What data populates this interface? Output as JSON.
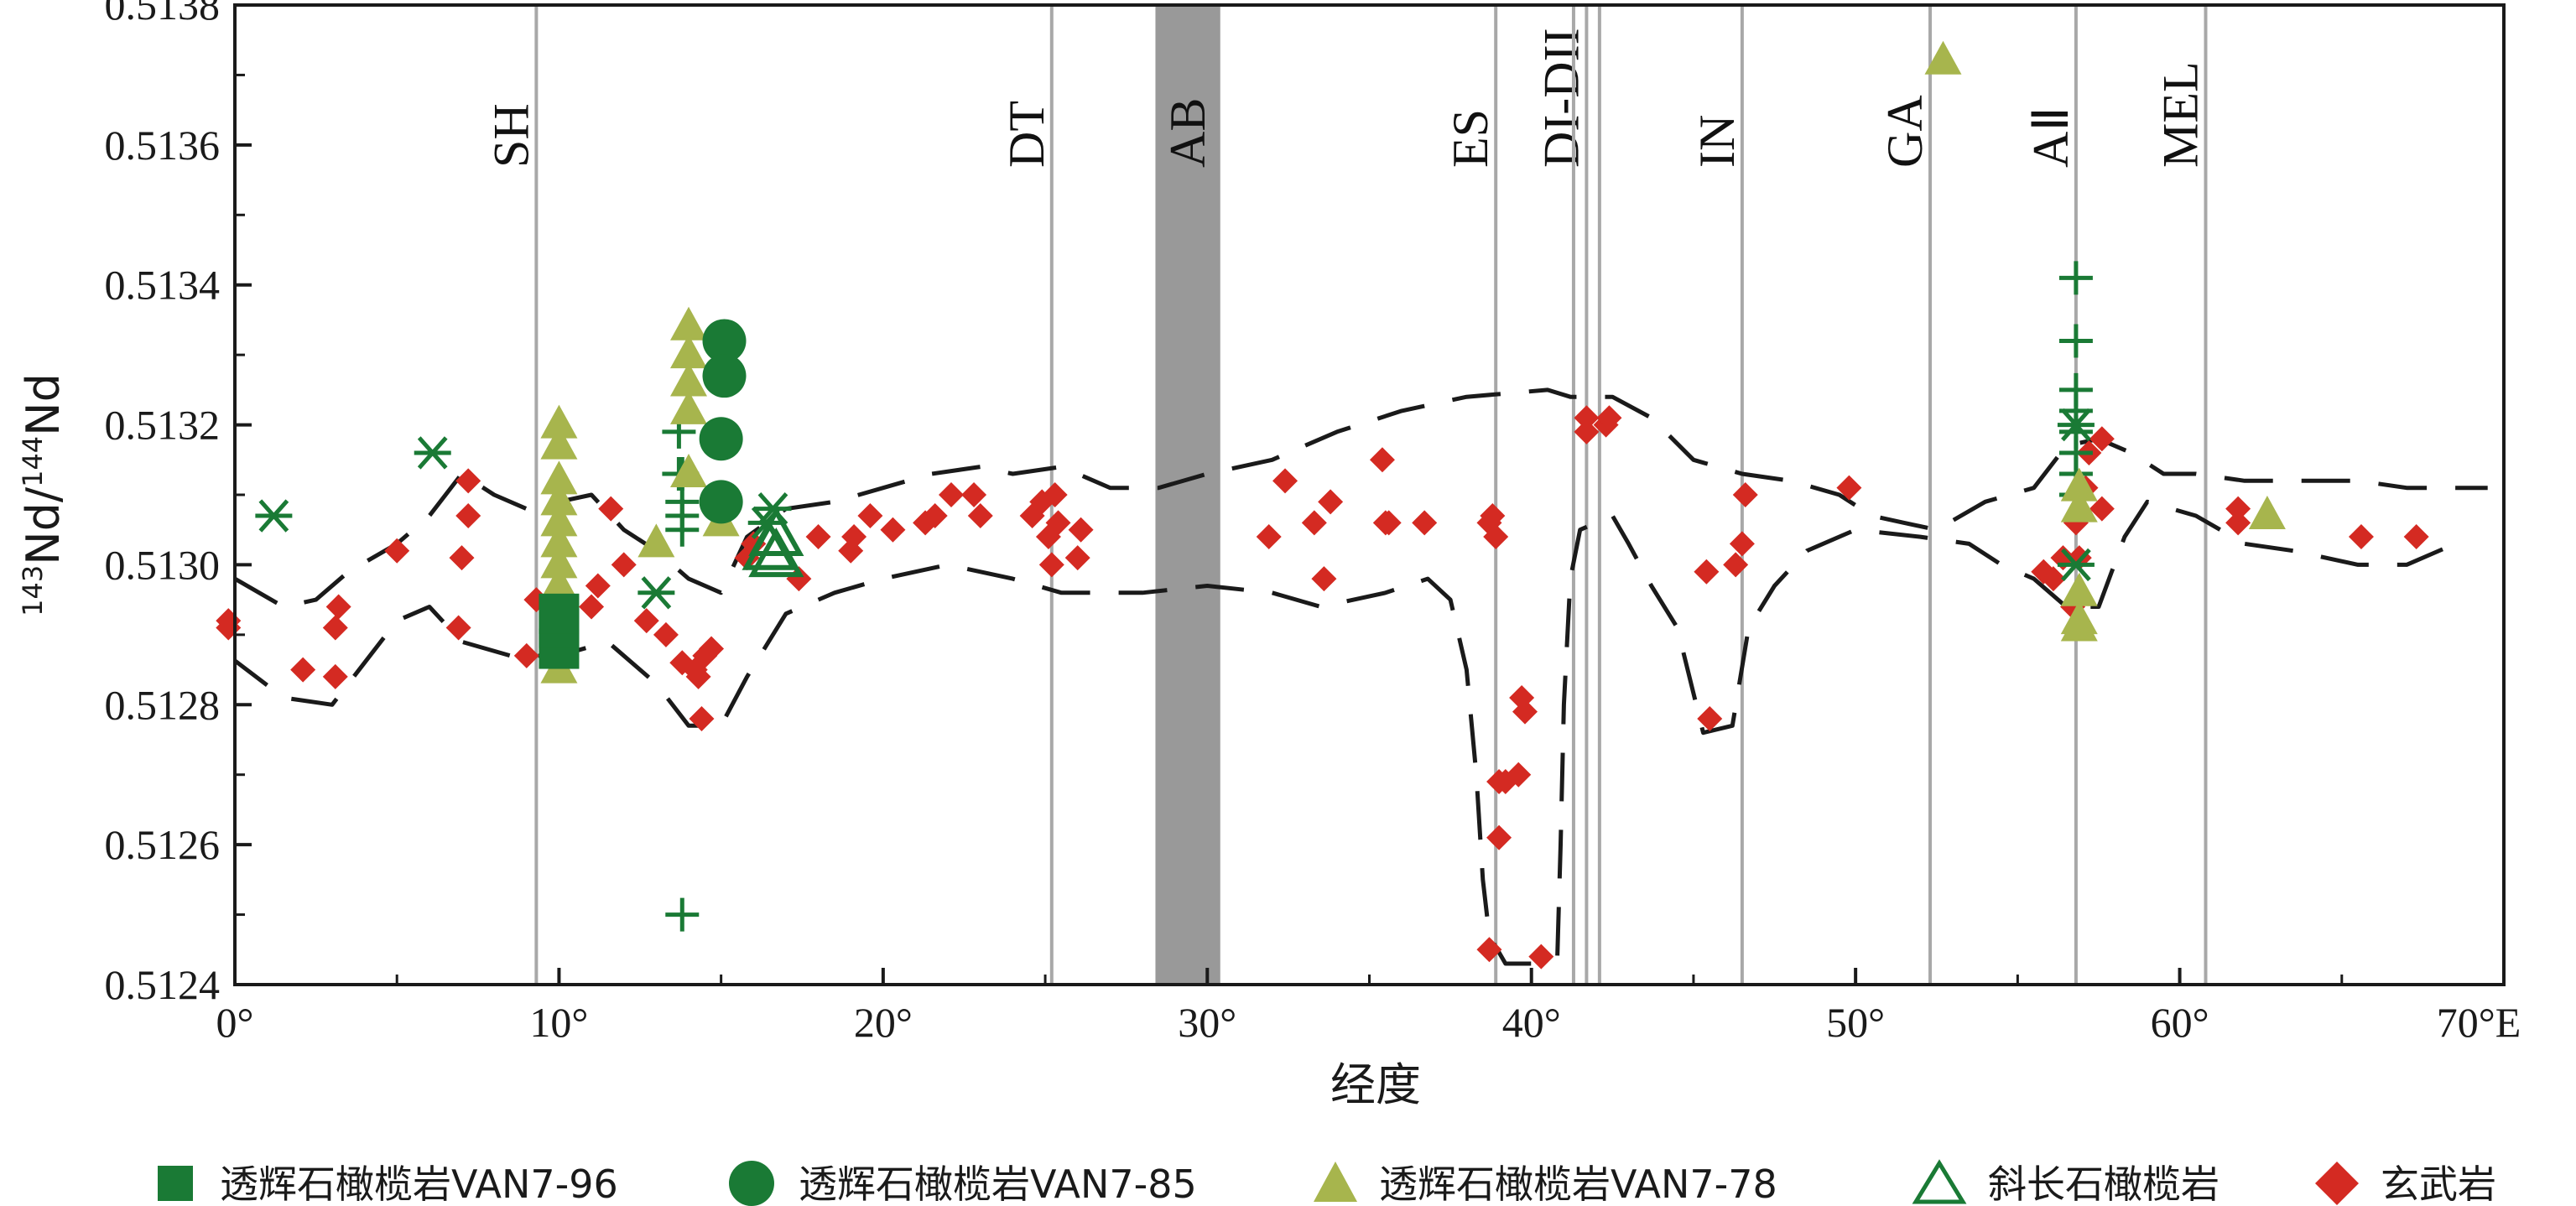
{
  "chart_data": {
    "type": "scatter",
    "title": "",
    "xlabel": "经度",
    "ylabel_parts": {
      "sup1": "143",
      "mid": "Nd/",
      "sup2": "144",
      "end": "Nd"
    },
    "xlim": [
      0,
      70
    ],
    "ylim": [
      0.5124,
      0.5138
    ],
    "x_ticks": [
      {
        "v": 0,
        "label": "0°"
      },
      {
        "v": 10,
        "label": "10°"
      },
      {
        "v": 20,
        "label": "20°"
      },
      {
        "v": 30,
        "label": "30°"
      },
      {
        "v": 40,
        "label": "40°"
      },
      {
        "v": 50,
        "label": "50°"
      },
      {
        "v": 60,
        "label": "60°"
      },
      {
        "v": 70,
        "label": "70°E"
      }
    ],
    "y_ticks": [
      {
        "v": 0.5124,
        "label": "0.5124"
      },
      {
        "v": 0.5126,
        "label": "0.5126"
      },
      {
        "v": 0.5128,
        "label": "0.5128"
      },
      {
        "v": 0.513,
        "label": "0.5130"
      },
      {
        "v": 0.5132,
        "label": "0.5132"
      },
      {
        "v": 0.5134,
        "label": "0.5134"
      },
      {
        "v": 0.5136,
        "label": "0.5136"
      },
      {
        "v": 0.5138,
        "label": "0.5138"
      }
    ],
    "ridge_lines": [
      {
        "x": 9.3,
        "label": "SH"
      },
      {
        "x": 25.2,
        "label": "DT"
      },
      {
        "x": 38.9,
        "label": "ES"
      },
      {
        "x": 41.7,
        "label": "DI-DII"
      },
      {
        "x": 46.5,
        "label": "IN"
      },
      {
        "x": 52.3,
        "label": "GA"
      },
      {
        "x": 56.8,
        "label": "AⅡ"
      },
      {
        "x": 60.8,
        "label": "MEL"
      }
    ],
    "extra_line_x": [
      41.3,
      42.1
    ],
    "band": {
      "x0": 28.4,
      "x1": 30.4,
      "label": "AB",
      "label_x": 29.4
    },
    "colors": {
      "dark_green": "#1a7a35",
      "olive": "#a7b54d",
      "red": "#d42a22",
      "ridge_line": "#a8a8a8",
      "band": "#999999",
      "envelope": "#1a1a1a"
    },
    "series": [
      {
        "name": "透辉石橄榄岩VAN7-96",
        "marker": "square",
        "color": "#1a7a35",
        "in_legend": true,
        "points": [
          [
            10.0,
            0.51288
          ],
          [
            10.0,
            0.51291
          ],
          [
            10.0,
            0.51293
          ]
        ]
      },
      {
        "name": "透辉石橄榄岩VAN7-85",
        "marker": "circle",
        "color": "#1a7a35",
        "in_legend": true,
        "points": [
          [
            15.1,
            0.51332
          ],
          [
            15.1,
            0.51327
          ],
          [
            15.0,
            0.51318
          ],
          [
            15.0,
            0.51309
          ]
        ]
      },
      {
        "name": "透辉石橄榄岩VAN7-78",
        "marker": "triangle",
        "color": "#a7b54d",
        "in_legend": true,
        "points": [
          [
            10.0,
            0.5132
          ],
          [
            10.0,
            0.51317
          ],
          [
            10.0,
            0.51312
          ],
          [
            10.0,
            0.51309
          ],
          [
            10.0,
            0.51306
          ],
          [
            10.0,
            0.51303
          ],
          [
            10.0,
            0.513
          ],
          [
            10.0,
            0.51297
          ],
          [
            10.0,
            0.51294
          ],
          [
            10.0,
            0.51291
          ],
          [
            10.0,
            0.51288
          ],
          [
            10.0,
            0.51285
          ],
          [
            13.0,
            0.51303
          ],
          [
            14.0,
            0.51334
          ],
          [
            14.0,
            0.5133
          ],
          [
            14.0,
            0.51326
          ],
          [
            14.0,
            0.51322
          ],
          [
            14.0,
            0.51313
          ],
          [
            15.0,
            0.51306
          ],
          [
            52.7,
            0.51372
          ],
          [
            56.9,
            0.51311
          ],
          [
            56.9,
            0.51308
          ],
          [
            56.9,
            0.51296
          ],
          [
            56.9,
            0.51292
          ],
          [
            56.9,
            0.51291
          ],
          [
            62.7,
            0.51307
          ]
        ]
      },
      {
        "name": "斜长石橄榄岩",
        "marker": "open-triangle",
        "color": "#1a7a35",
        "in_legend": true,
        "points": [
          [
            16.5,
            0.51302
          ],
          [
            16.7,
            0.51304
          ],
          [
            16.7,
            0.51301
          ]
        ]
      },
      {
        "name": "玄武岩",
        "marker": "diamond",
        "color": "#d42a22",
        "in_legend": true,
        "points": [
          [
            -0.2,
            0.51292
          ],
          [
            -0.2,
            0.51291
          ],
          [
            2.1,
            0.51285
          ],
          [
            3.1,
            0.51284
          ],
          [
            3.1,
            0.51291
          ],
          [
            3.2,
            0.51294
          ],
          [
            5.0,
            0.51302
          ],
          [
            6.9,
            0.51291
          ],
          [
            7.0,
            0.51301
          ],
          [
            7.2,
            0.51307
          ],
          [
            7.2,
            0.51312
          ],
          [
            9.0,
            0.51287
          ],
          [
            9.3,
            0.51295
          ],
          [
            11.0,
            0.51294
          ],
          [
            11.2,
            0.51297
          ],
          [
            11.6,
            0.51308
          ],
          [
            12.0,
            0.513
          ],
          [
            12.7,
            0.51292
          ],
          [
            13.3,
            0.5129
          ],
          [
            13.8,
            0.51286
          ],
          [
            14.2,
            0.51285
          ],
          [
            14.3,
            0.51284
          ],
          [
            14.4,
            0.51278
          ],
          [
            14.5,
            0.51287
          ],
          [
            14.7,
            0.51288
          ],
          [
            15.8,
            0.51301
          ],
          [
            16.0,
            0.51303
          ],
          [
            17.4,
            0.51298
          ],
          [
            18.0,
            0.51304
          ],
          [
            19.0,
            0.51302
          ],
          [
            19.1,
            0.51304
          ],
          [
            19.6,
            0.51307
          ],
          [
            20.3,
            0.51305
          ],
          [
            21.3,
            0.51306
          ],
          [
            21.6,
            0.51307
          ],
          [
            22.1,
            0.5131
          ],
          [
            22.8,
            0.5131
          ],
          [
            23.0,
            0.51307
          ],
          [
            24.6,
            0.51307
          ],
          [
            24.9,
            0.51309
          ],
          [
            25.1,
            0.51304
          ],
          [
            25.2,
            0.513
          ],
          [
            25.3,
            0.5131
          ],
          [
            25.4,
            0.51306
          ],
          [
            26.0,
            0.51301
          ],
          [
            26.1,
            0.51305
          ],
          [
            31.9,
            0.51304
          ],
          [
            32.4,
            0.51312
          ],
          [
            33.3,
            0.51306
          ],
          [
            33.6,
            0.51298
          ],
          [
            33.8,
            0.51309
          ],
          [
            35.4,
            0.51315
          ],
          [
            35.5,
            0.51306
          ],
          [
            35.6,
            0.51306
          ],
          [
            36.7,
            0.51306
          ],
          [
            38.7,
            0.51306
          ],
          [
            38.8,
            0.51307
          ],
          [
            38.9,
            0.51304
          ],
          [
            38.7,
            0.51245
          ],
          [
            39.0,
            0.51269
          ],
          [
            39.0,
            0.51261
          ],
          [
            39.2,
            0.51269
          ],
          [
            39.6,
            0.5127
          ],
          [
            39.7,
            0.51281
          ],
          [
            39.8,
            0.51279
          ],
          [
            40.3,
            0.51244
          ],
          [
            41.7,
            0.51319
          ],
          [
            41.7,
            0.51321
          ],
          [
            42.3,
            0.5132
          ],
          [
            42.4,
            0.51321
          ],
          [
            45.4,
            0.51299
          ],
          [
            45.5,
            0.51278
          ],
          [
            46.3,
            0.513
          ],
          [
            46.5,
            0.51303
          ],
          [
            46.6,
            0.5131
          ],
          [
            49.8,
            0.51311
          ],
          [
            55.8,
            0.51299
          ],
          [
            56.1,
            0.51298
          ],
          [
            56.4,
            0.51301
          ],
          [
            56.7,
            0.51294
          ],
          [
            56.8,
            0.51306
          ],
          [
            56.9,
            0.51301
          ],
          [
            57.1,
            0.51311
          ],
          [
            57.2,
            0.51316
          ],
          [
            57.6,
            0.51318
          ],
          [
            57.6,
            0.51308
          ],
          [
            61.8,
            0.51306
          ],
          [
            61.8,
            0.51308
          ],
          [
            65.6,
            0.51304
          ],
          [
            67.3,
            0.51304
          ]
        ]
      },
      {
        "name": "",
        "marker": "plus",
        "color": "#1a7a35",
        "in_legend": false,
        "points": [
          [
            13.8,
            0.51313
          ],
          [
            13.8,
            0.51309
          ],
          [
            13.8,
            0.51307
          ],
          [
            13.8,
            0.51305
          ],
          [
            13.7,
            0.51319
          ],
          [
            13.7,
            0.51313
          ],
          [
            13.8,
            0.5125
          ],
          [
            56.8,
            0.51341
          ],
          [
            56.8,
            0.51332
          ],
          [
            56.8,
            0.51325
          ],
          [
            56.8,
            0.51322
          ],
          [
            56.8,
            0.51319
          ],
          [
            56.8,
            0.51316
          ],
          [
            56.8,
            0.51313
          ],
          [
            56.8,
            0.5131
          ]
        ]
      },
      {
        "name": "",
        "marker": "asterisk",
        "color": "#1a7a35",
        "in_legend": false,
        "points": [
          [
            1.2,
            0.51307
          ],
          [
            6.1,
            0.51316
          ],
          [
            13.0,
            0.51296
          ],
          [
            16.4,
            0.51306
          ],
          [
            16.6,
            0.51308
          ],
          [
            56.8,
            0.5132
          ],
          [
            56.8,
            0.513
          ]
        ]
      }
    ],
    "envelopes": [
      [
        [
          -0.2,
          0.51287
        ],
        [
          1.5,
          0.51281
        ],
        [
          3.0,
          0.5128
        ],
        [
          4.0,
          0.51286
        ],
        [
          5.0,
          0.51292
        ],
        [
          6.0,
          0.51294
        ],
        [
          7.0,
          0.51289
        ],
        [
          8.5,
          0.51287
        ],
        [
          10.0,
          0.51287
        ],
        [
          11.5,
          0.51289
        ],
        [
          13.0,
          0.51283
        ],
        [
          14.0,
          0.51277
        ],
        [
          15.0,
          0.51277
        ],
        [
          15.8,
          0.51284
        ],
        [
          17.0,
          0.51293
        ],
        [
          18.5,
          0.51296
        ],
        [
          20.0,
          0.51298
        ],
        [
          22.0,
          0.513
        ],
        [
          24.0,
          0.51298
        ],
        [
          25.5,
          0.51296
        ],
        [
          28.0,
          0.51296
        ],
        [
          30.0,
          0.51297
        ],
        [
          32.0,
          0.51296
        ],
        [
          33.5,
          0.51294
        ],
        [
          35.5,
          0.51296
        ],
        [
          36.8,
          0.51298
        ],
        [
          37.5,
          0.51295
        ],
        [
          38.0,
          0.51285
        ],
        [
          38.3,
          0.5127
        ],
        [
          38.5,
          0.51255
        ],
        [
          38.7,
          0.51247
        ],
        [
          39.2,
          0.51243
        ],
        [
          40.2,
          0.51243
        ],
        [
          40.8,
          0.51244
        ],
        [
          40.9,
          0.5126
        ],
        [
          41.0,
          0.5128
        ],
        [
          41.2,
          0.51298
        ],
        [
          41.5,
          0.51305
        ],
        [
          42.5,
          0.51307
        ],
        [
          43.0,
          0.51303
        ],
        [
          43.7,
          0.51297
        ],
        [
          44.5,
          0.51291
        ],
        [
          45.3,
          0.51276
        ],
        [
          46.2,
          0.51277
        ],
        [
          46.7,
          0.51291
        ],
        [
          47.5,
          0.51297
        ],
        [
          48.5,
          0.51302
        ],
        [
          50.0,
          0.51305
        ],
        [
          52.0,
          0.51304
        ],
        [
          53.5,
          0.51303
        ],
        [
          54.5,
          0.513
        ],
        [
          55.5,
          0.51298
        ],
        [
          56.5,
          0.51294
        ],
        [
          57.5,
          0.51294
        ],
        [
          58.3,
          0.51304
        ],
        [
          59.0,
          0.51309
        ],
        [
          60.5,
          0.51307
        ],
        [
          62.0,
          0.51303
        ],
        [
          63.5,
          0.51302
        ],
        [
          65.5,
          0.513
        ],
        [
          67.0,
          0.513
        ],
        [
          68.5,
          0.51303
        ]
      ],
      [
        [
          0.0,
          0.51298
        ],
        [
          1.5,
          0.51294
        ],
        [
          2.5,
          0.51295
        ],
        [
          3.5,
          0.51299
        ],
        [
          5.0,
          0.51303
        ],
        [
          6.0,
          0.51307
        ],
        [
          7.0,
          0.51313
        ],
        [
          8.0,
          0.5131
        ],
        [
          9.0,
          0.51308
        ],
        [
          10.0,
          0.51309
        ],
        [
          11.0,
          0.5131
        ],
        [
          12.0,
          0.51305
        ],
        [
          13.0,
          0.51302
        ],
        [
          14.0,
          0.51298
        ],
        [
          15.0,
          0.51296
        ],
        [
          15.8,
          0.51304
        ],
        [
          17.0,
          0.51308
        ],
        [
          18.5,
          0.51309
        ],
        [
          20.0,
          0.51311
        ],
        [
          21.5,
          0.51313
        ],
        [
          23.0,
          0.51314
        ],
        [
          24.0,
          0.51313
        ],
        [
          25.5,
          0.51314
        ],
        [
          27.0,
          0.51311
        ],
        [
          28.5,
          0.51311
        ],
        [
          30.0,
          0.51313
        ],
        [
          32.0,
          0.51315
        ],
        [
          34.0,
          0.51319
        ],
        [
          36.0,
          0.51322
        ],
        [
          38.0,
          0.51324
        ],
        [
          40.5,
          0.51325
        ],
        [
          41.2,
          0.51324
        ],
        [
          42.5,
          0.51324
        ],
        [
          43.7,
          0.51321
        ],
        [
          45.0,
          0.51315
        ],
        [
          46.5,
          0.51313
        ],
        [
          48.0,
          0.51312
        ],
        [
          49.5,
          0.5131
        ],
        [
          50.5,
          0.51307
        ],
        [
          51.5,
          0.51306
        ],
        [
          52.5,
          0.51305
        ],
        [
          54.0,
          0.51309
        ],
        [
          55.5,
          0.51311
        ],
        [
          56.5,
          0.51317
        ],
        [
          57.5,
          0.51318
        ],
        [
          58.5,
          0.51316
        ],
        [
          59.5,
          0.51313
        ],
        [
          60.5,
          0.51313
        ],
        [
          62.0,
          0.51312
        ],
        [
          63.5,
          0.51312
        ],
        [
          65.5,
          0.51312
        ],
        [
          67.0,
          0.51311
        ],
        [
          68.5,
          0.51311
        ],
        [
          69.5,
          0.51311
        ]
      ]
    ],
    "legend_placement": "bottom",
    "grid": false
  }
}
